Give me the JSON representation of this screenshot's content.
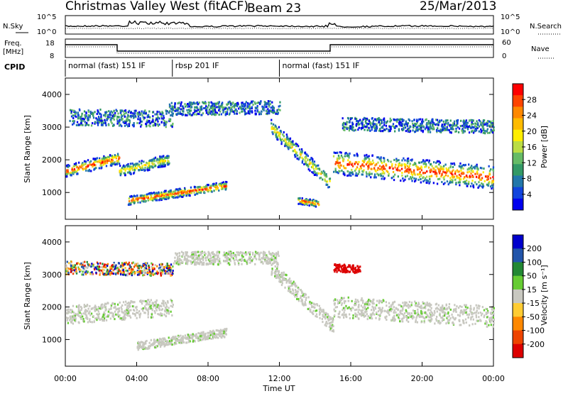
{
  "header": {
    "station": "Christmas Valley West (fitACF)",
    "beam": "Beam 23",
    "date": "25/Mar/2013"
  },
  "noise_panel": {
    "left_label": "N.Sky",
    "right_label": "N.Search",
    "left_ticks": [
      "10^5",
      "10^0"
    ],
    "right_ticks": [
      "10^5",
      "10^0"
    ]
  },
  "freq_panel": {
    "left_label_1": "Freq.",
    "left_label_2": "[MHz]",
    "right_label": "Nave",
    "left_ticks": [
      "18",
      "8"
    ],
    "right_ticks": [
      "60",
      "0"
    ]
  },
  "cpid": {
    "label": "CPID",
    "segments": [
      {
        "start_hour": 0,
        "end_hour": 6,
        "text": "normal (fast) 151 IF"
      },
      {
        "start_hour": 6,
        "end_hour": 12,
        "text": "rbsp 201 IF"
      },
      {
        "start_hour": 12,
        "end_hour": 24,
        "text": "normal (fast) 151 IF"
      }
    ]
  },
  "x_axis": {
    "label": "Time UT",
    "ticks": [
      "00:00",
      "04:00",
      "08:00",
      "12:00",
      "16:00",
      "20:00",
      "00:00"
    ]
  },
  "power_panel": {
    "ylabel": "Slant Range [km]",
    "yticks": [
      "4000",
      "3000",
      "2000",
      "1000"
    ],
    "colorbar_label": "Power [dB]",
    "colorbar_ticks": [
      "28",
      "24",
      "20",
      "16",
      "12",
      "8",
      "4"
    ],
    "colors": [
      "#ff0000",
      "#ff4400",
      "#ff8800",
      "#ffbb00",
      "#ffee00",
      "#bbdd44",
      "#66bb66",
      "#339966",
      "#2277aa",
      "#1144dd",
      "#0000ee"
    ]
  },
  "velocity_panel": {
    "ylabel": "Slant Range [km]",
    "yticks": [
      "4000",
      "3000",
      "2000",
      "1000"
    ],
    "colorbar_label": "Velocity [m s⁻¹]",
    "colorbar_ticks": [
      "200",
      "100",
      "50",
      "15",
      "-15",
      "-50",
      "-100",
      "-200"
    ],
    "colors": [
      "#0000cc",
      "#2255aa",
      "#228833",
      "#66cc33",
      "#c8c8c0",
      "#ffcc33",
      "#ff8800",
      "#ee4400",
      "#dd0000"
    ]
  },
  "chart_data": {
    "type": "heatmap",
    "x_range_hours": [
      0,
      24
    ],
    "y_range_km": [
      180,
      4500
    ],
    "power_features": [
      {
        "t": [
          0.0,
          3.0
        ],
        "r_center": [
          1650,
          2050
        ],
        "r_half": 180,
        "level": "high"
      },
      {
        "t": [
          3.0,
          5.8
        ],
        "r_center": [
          1650,
          2000
        ],
        "r_half": 170,
        "level": "mid"
      },
      {
        "t": [
          0.2,
          6.0
        ],
        "r_center": [
          3300,
          3250
        ],
        "r_half": 250,
        "level": "low"
      },
      {
        "t": [
          5.8,
          12.0
        ],
        "r_center": [
          3550,
          3600
        ],
        "r_half": 200,
        "level": "low"
      },
      {
        "t": [
          3.5,
          9.0
        ],
        "r_center": [
          750,
          1200
        ],
        "r_half": 130,
        "level": "high"
      },
      {
        "t": [
          11.5,
          14.8
        ],
        "r_center": [
          3000,
          1300
        ],
        "r_half": 220,
        "level": "mid"
      },
      {
        "t": [
          13.0,
          14.2
        ],
        "r_center": [
          750,
          650
        ],
        "r_half": 100,
        "level": "high"
      },
      {
        "t": [
          15.0,
          24.0
        ],
        "r_center": [
          1900,
          1450
        ],
        "r_half": 350,
        "level": "high"
      },
      {
        "t": [
          15.5,
          24.0
        ],
        "r_center": [
          3100,
          3000
        ],
        "r_half": 200,
        "level": "low"
      }
    ],
    "velocity_features": [
      {
        "t": [
          0.0,
          6.0
        ],
        "r_center": [
          1750,
          2000
        ],
        "r_half": 280,
        "vel": "ground"
      },
      {
        "t": [
          0.0,
          6.0
        ],
        "r_center": [
          3200,
          3150
        ],
        "r_half": 200,
        "vel": "mixed"
      },
      {
        "t": [
          6.0,
          12.0
        ],
        "r_center": [
          3500,
          3500
        ],
        "r_half": 200,
        "vel": "ground"
      },
      {
        "t": [
          4.0,
          9.0
        ],
        "r_center": [
          800,
          1200
        ],
        "r_half": 130,
        "vel": "ground"
      },
      {
        "t": [
          11.5,
          15.0
        ],
        "r_center": [
          3200,
          1400
        ],
        "r_half": 220,
        "vel": "ground"
      },
      {
        "t": [
          15.0,
          24.0
        ],
        "r_center": [
          2000,
          1700
        ],
        "r_half": 320,
        "vel": "ground"
      },
      {
        "t": [
          15.0,
          16.5
        ],
        "r_center": [
          3200,
          3150
        ],
        "r_half": 120,
        "vel": "negative"
      }
    ]
  }
}
